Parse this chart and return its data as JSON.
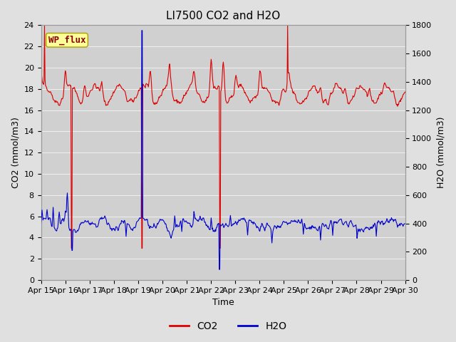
{
  "title": "LI7500 CO2 and H2O",
  "xlabel": "Time",
  "ylabel_left": "CO2 (mmol/m3)",
  "ylabel_right": "H2O (mmol/m3)",
  "ylim_left": [
    0,
    24
  ],
  "ylim_right": [
    0,
    1800
  ],
  "yticks_left": [
    0,
    2,
    4,
    6,
    8,
    10,
    12,
    14,
    16,
    18,
    20,
    22,
    24
  ],
  "yticks_right": [
    0,
    200,
    400,
    600,
    800,
    1000,
    1200,
    1400,
    1600,
    1800
  ],
  "xtick_labels": [
    "Apr 15",
    "Apr 16",
    "Apr 17",
    "Apr 18",
    "Apr 19",
    "Apr 20",
    "Apr 21",
    "Apr 22",
    "Apr 23",
    "Apr 24",
    "Apr 25",
    "Apr 26",
    "Apr 27",
    "Apr 28",
    "Apr 29",
    "Apr 30"
  ],
  "annotation_text": "WP_flux",
  "co2_color": "#dd0000",
  "h2o_color": "#0000cc",
  "bg_color": "#e0e0e0",
  "plot_bg_color": "#d0d0d0",
  "grid_color": "#f0f0f0",
  "title_fontsize": 11,
  "axis_fontsize": 9,
  "tick_fontsize": 8,
  "legend_fontsize": 10,
  "linewidth": 0.8,
  "seed": 42
}
